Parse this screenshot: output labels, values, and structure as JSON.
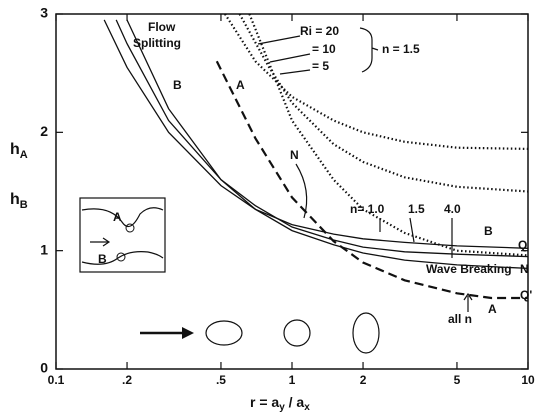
{
  "chart_data": {
    "type": "line",
    "xscale": "log",
    "xlim": [
      0.1,
      10
    ],
    "ylim": [
      0,
      3
    ],
    "xticks": [
      0.1,
      {
        "value": 0.2,
        "label": ".2"
      },
      {
        "value": 0.5,
        "label": ".5"
      },
      1,
      2,
      5,
      10
    ],
    "yticks": [
      0,
      1,
      2,
      3
    ],
    "x_label": {
      "a": "r = a",
      "b": "y",
      "c": " / a",
      "d": "x"
    },
    "y_label_a": {
      "main": "h",
      "sub": "A"
    },
    "y_label_b": {
      "main": "h",
      "sub": "B"
    },
    "series": [
      {
        "color": "#111",
        "style": "solid",
        "x": [
          0.16,
          0.2,
          0.3,
          0.5,
          0.7,
          1,
          1.5,
          2,
          3,
          5,
          10
        ],
        "values": [
          2.95,
          2.55,
          2.0,
          1.55,
          1.35,
          1.22,
          1.14,
          1.1,
          1.07,
          1.04,
          1.02
        ]
      },
      {
        "color": "#111",
        "style": "solid",
        "x": [
          0.18,
          0.2,
          0.3,
          0.5,
          0.7,
          1,
          1.5,
          2,
          3,
          5,
          10
        ],
        "values": [
          2.95,
          2.75,
          2.1,
          1.6,
          1.38,
          1.2,
          1.09,
          1.03,
          0.99,
          0.97,
          0.95
        ]
      },
      {
        "color": "#111",
        "style": "solid",
        "x": [
          0.2,
          0.3,
          0.5,
          0.7,
          1,
          1.5,
          2,
          3,
          5,
          10
        ],
        "values": [
          2.95,
          2.2,
          1.6,
          1.35,
          1.17,
          1.05,
          0.98,
          0.92,
          0.88,
          0.85
        ]
      },
      {
        "color": "#111",
        "style": "dashed",
        "x": [
          0.48,
          0.7,
          1,
          1.5,
          2,
          3,
          5,
          7,
          10
        ],
        "values": [
          2.6,
          1.95,
          1.45,
          1.08,
          0.9,
          0.75,
          0.64,
          0.6,
          0.6
        ]
      },
      {
        "color": "#111",
        "style": "dotted",
        "x": [
          0.52,
          0.7,
          1,
          1.5,
          2,
          3,
          5,
          10
        ],
        "values": [
          3,
          2.6,
          2.3,
          2.1,
          2.0,
          1.92,
          1.87,
          1.86
        ]
      },
      {
        "color": "#111",
        "style": "dotted",
        "x": [
          0.6,
          0.8,
          1,
          1.5,
          2,
          3,
          5,
          10
        ],
        "values": [
          3,
          2.55,
          2.25,
          1.9,
          1.75,
          1.62,
          1.54,
          1.5
        ]
      },
      {
        "color": "#111",
        "style": "dotted",
        "x": [
          0.66,
          1,
          1.5,
          2,
          3,
          5,
          10
        ],
        "values": [
          3,
          2.1,
          1.6,
          1.35,
          1.15,
          1.0,
          0.96
        ]
      }
    ],
    "annotations": {
      "flow": "Flow",
      "splitting": "Splitting",
      "ri20": "Ri = 20",
      "ri10": "= 10",
      "ri5": "= 5",
      "n15": "n = 1.5",
      "b_left": "B",
      "a_left": "A",
      "n_mid": "N",
      "n10": "n= 1.0",
      "n15b": "1.5",
      "n40": "4.0",
      "b_right": "B",
      "q": "Q",
      "wave": "Wave Breaking",
      "n_right": "N",
      "all_n": "all n",
      "a_right": "A",
      "q_prime": "Q'",
      "inset_a": "A",
      "inset_b": "B"
    }
  }
}
